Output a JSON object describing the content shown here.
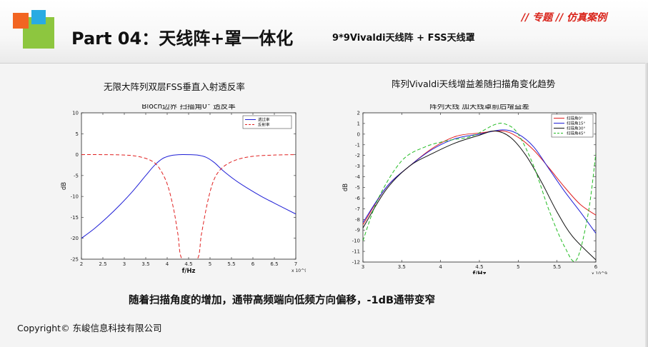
{
  "header": {
    "title": "Part 04：天线阵+罩一体化",
    "subtitle": "9*9Vivaldi天线阵 + FSS天线罩",
    "tag": "// 专题 // 仿真案例"
  },
  "colors": {
    "accent_red": "#d9251c",
    "logo_orange": "#f26522",
    "logo_green": "#8dc63f",
    "logo_blue": "#29abe2"
  },
  "left_caption": "无限大阵列双层FSS垂直入射透反率",
  "right_caption": "阵列Vivaldi天线增益差随扫描角变化趋势",
  "bottom_note": "随着扫描角度的增加，通带高频端向低频方向偏移，-1dB通带变窄",
  "copyright": "Copyright© 东峻信息科技有限公司",
  "chart_data": [
    {
      "type": "line",
      "title": "Bloch边界 扫描角0° 透反率",
      "xlabel": "f/Hz",
      "ylabel": "dB",
      "x_exponent": "x 10^9",
      "xlim": [
        2,
        7
      ],
      "ylim": [
        -25,
        10
      ],
      "xticks": [
        "2",
        "2.5",
        "3",
        "3.5",
        "4",
        "4.5",
        "5",
        "5.5",
        "6",
        "6.5",
        "7"
      ],
      "yticks": [
        "10",
        "5",
        "0",
        "-5",
        "-10",
        "-15",
        "-20",
        "-25"
      ],
      "legend_position": "top-right",
      "series": [
        {
          "name": "透过率",
          "color": "#1f1fd6",
          "dash": "",
          "x": [
            2,
            2.3,
            2.6,
            2.9,
            3.2,
            3.5,
            3.7,
            3.9,
            4.1,
            4.3,
            4.5,
            4.7,
            4.9,
            5.1,
            5.3,
            5.6,
            5.9,
            6.2,
            6.5,
            7.0
          ],
          "y": [
            -20,
            -17.7,
            -15,
            -12,
            -8.7,
            -5,
            -2.6,
            -0.9,
            -0.2,
            0,
            0,
            -0.1,
            -0.6,
            -1.9,
            -3.8,
            -6.2,
            -8.2,
            -10,
            -11.6,
            -14.2
          ]
        },
        {
          "name": "反射率",
          "color": "#e02020",
          "dash": "5,3",
          "x": [
            2,
            2.5,
            3,
            3.3,
            3.6,
            3.8,
            4.0,
            4.15,
            4.25,
            4.35,
            4.7,
            4.8,
            4.95,
            5.1,
            5.3,
            5.6,
            6,
            6.5,
            7
          ],
          "y": [
            0,
            0,
            -0.1,
            -0.4,
            -1.3,
            -3,
            -7,
            -13,
            -19,
            -25,
            -25,
            -19,
            -11,
            -5.8,
            -3,
            -1.3,
            -0.4,
            -0.1,
            0
          ]
        }
      ]
    },
    {
      "type": "line",
      "title": "阵列天线  加天线罩前后增益差",
      "xlabel": "f/Hz",
      "ylabel": "dB",
      "x_exponent": "x 10^9",
      "xlim": [
        3,
        6
      ],
      "ylim": [
        -12,
        2
      ],
      "xticks": [
        "3",
        "3.5",
        "4",
        "4.5",
        "5",
        "5.5",
        "6"
      ],
      "yticks": [
        "2",
        "1",
        "0",
        "-1",
        "-2",
        "-3",
        "-4",
        "-5",
        "-6",
        "-7",
        "-8",
        "-9",
        "-10",
        "-11",
        "-12"
      ],
      "legend_position": "top-right",
      "series": [
        {
          "name": "扫描角0°",
          "color": "#e02020",
          "dash": "",
          "x": [
            3,
            3.3,
            3.6,
            3.9,
            4.2,
            4.5,
            4.8,
            5.0,
            5.2,
            5.4,
            5.6,
            5.8,
            6.0
          ],
          "y": [
            -8.5,
            -5,
            -3,
            -1.3,
            -0.2,
            0.1,
            0.3,
            -0.3,
            -1.5,
            -3.2,
            -5,
            -6.6,
            -7.6
          ]
        },
        {
          "name": "扫描角15°",
          "color": "#1f1fd6",
          "dash": "",
          "x": [
            3,
            3.3,
            3.6,
            3.9,
            4.2,
            4.5,
            4.8,
            5.0,
            5.2,
            5.4,
            5.6,
            5.8,
            6.0
          ],
          "y": [
            -8.3,
            -5,
            -3,
            -1.4,
            -0.4,
            0,
            0.4,
            0,
            -1.2,
            -3.3,
            -5.4,
            -7.3,
            -9.3
          ]
        },
        {
          "name": "扫描角30°",
          "color": "#111111",
          "dash": "",
          "x": [
            3,
            3.3,
            3.6,
            3.9,
            4.2,
            4.5,
            4.7,
            4.9,
            5.1,
            5.3,
            5.5,
            5.7,
            6.0
          ],
          "y": [
            -8.8,
            -5.2,
            -3,
            -1.8,
            -0.8,
            -0.1,
            0.3,
            -0.3,
            -2,
            -4.5,
            -7.3,
            -9.6,
            -11.8
          ]
        },
        {
          "name": "扫描角45°",
          "color": "#22bb22",
          "dash": "5,3",
          "x": [
            3,
            3.2,
            3.5,
            3.8,
            4.1,
            4.4,
            4.7,
            4.85,
            5.0,
            5.2,
            5.4,
            5.6,
            5.75,
            5.9,
            6.0
          ],
          "y": [
            -10,
            -6,
            -2.5,
            -1.2,
            -0.6,
            -0.2,
            0.9,
            0.9,
            0,
            -3,
            -7.2,
            -10.6,
            -11.8,
            -7.5,
            -1.8
          ]
        }
      ]
    }
  ]
}
